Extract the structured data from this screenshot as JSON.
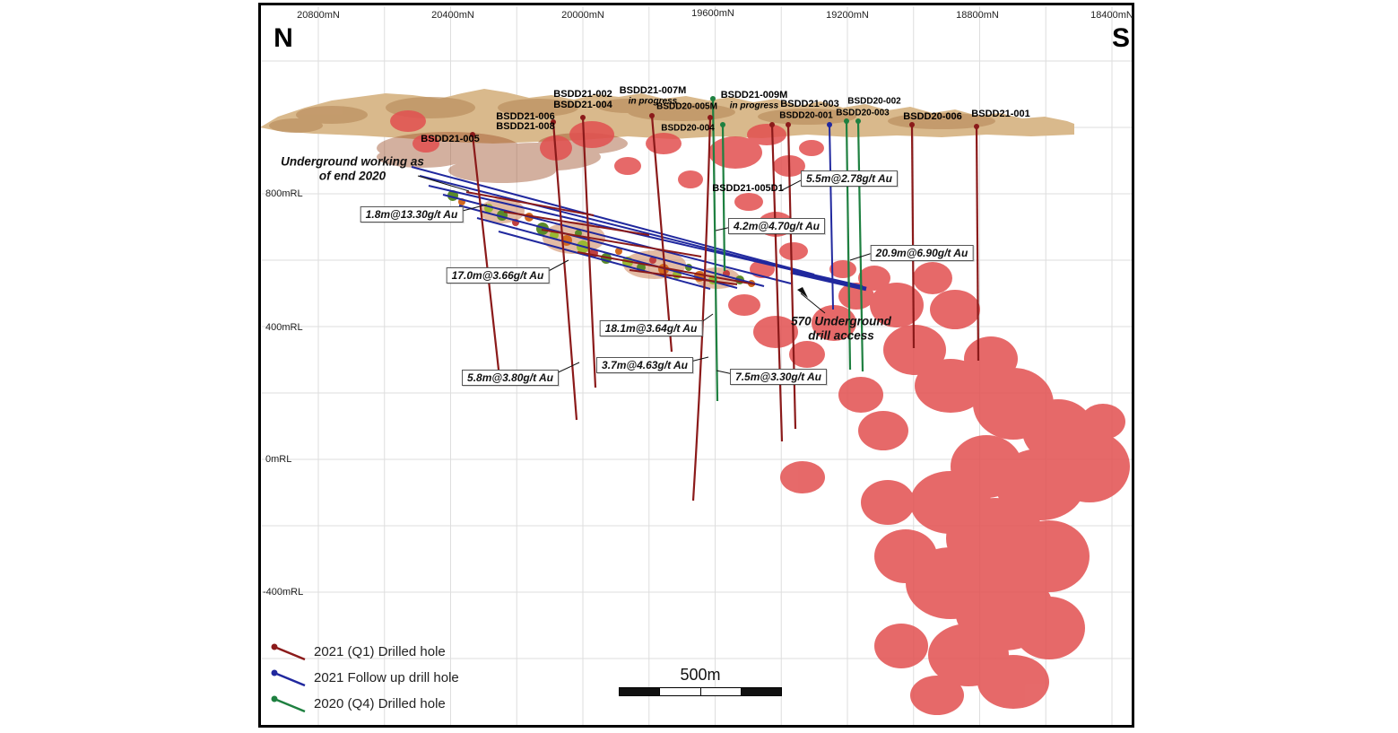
{
  "section": {
    "north": "N",
    "south": "S"
  },
  "axes": {
    "northings": [
      "20800mN",
      "20400mN",
      "20000mN",
      "19600mN",
      "19200mN",
      "18800mN",
      "18400mN"
    ],
    "elevations": [
      "800mRL",
      "400mRL",
      "0mRL",
      "-400mRL"
    ]
  },
  "drills": [
    {
      "name": "BSDD21-005"
    },
    {
      "name": "BSDD21-006"
    },
    {
      "name": "BSDD21-008"
    },
    {
      "name": "BSDD21-002"
    },
    {
      "name": "BSDD21-004"
    },
    {
      "name": "BSDD21-007M",
      "status": "in progress"
    },
    {
      "name": "BSDD20-005M"
    },
    {
      "name": "BSDD20-004"
    },
    {
      "name": "BSDD21-009M",
      "status": "in progress"
    },
    {
      "name": "BSDD21-003"
    },
    {
      "name": "BSDD20-001"
    },
    {
      "name": "BSDD20-002"
    },
    {
      "name": "BSDD20-003"
    },
    {
      "name": "BSDD20-006"
    },
    {
      "name": "BSDD21-001"
    },
    {
      "name": "BSDD21-005D1"
    }
  ],
  "assays": [
    {
      "text": "1.8m@13.30g/t Au"
    },
    {
      "text": "17.0m@3.66g/t Au"
    },
    {
      "text": "5.8m@3.80g/t Au"
    },
    {
      "text": "18.1m@3.64g/t Au"
    },
    {
      "text": "3.7m@4.63g/t Au"
    },
    {
      "text": "4.2m@4.70g/t Au"
    },
    {
      "text": "5.5m@2.78g/t Au"
    },
    {
      "text": "20.9m@6.90g/t Au"
    },
    {
      "text": "7.5m@3.30g/t Au"
    }
  ],
  "annotations": {
    "underground_working_line1": "Underground working as",
    "underground_working_line2": "of end 2020",
    "drill_access_line1": "570 Underground",
    "drill_access_line2": "drill access"
  },
  "legend": [
    {
      "label": "2021 (Q1) Drilled hole",
      "color": "#8b1a1a"
    },
    {
      "label": "2021 Follow up drill hole",
      "color": "#20289e"
    },
    {
      "label": "2020 (Q4) Drilled hole",
      "color": "#1e8040"
    }
  ],
  "scale_bar": {
    "label": "500m"
  },
  "colors": {
    "drill_2021_q1": "#8b1a1a",
    "drill_2021_followup": "#20289e",
    "drill_2020_q4": "#1e8040",
    "mineralization_shell": "#e25050",
    "terrain": "#d9b98c"
  }
}
